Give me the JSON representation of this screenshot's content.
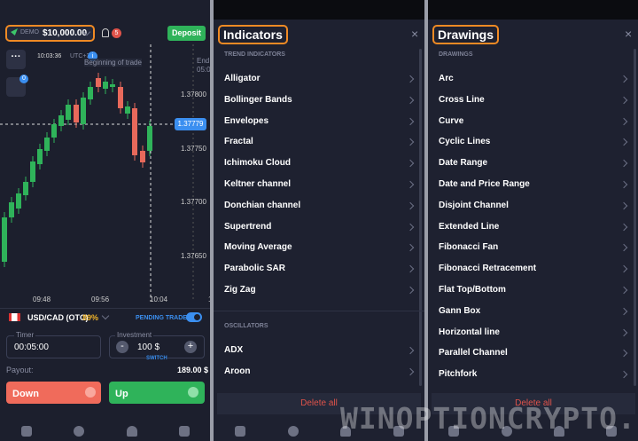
{
  "trade": {
    "account_type": "DEMO",
    "balance": "$10,000.00",
    "notifications": "5",
    "deposit": "Deposit",
    "portfolio_badge": "0",
    "clock": "10:03:36",
    "timezone": "UTC+3",
    "info": "i",
    "tooltip": "Beginning of trade",
    "end_label": "End",
    "end_time": "05:0",
    "price_labels": [
      "1.37800",
      "1.37750",
      "1.37700",
      "1.37650"
    ],
    "current_price": "1.37779",
    "time_labels": [
      "09:48",
      "09:56",
      "10:04",
      "1"
    ],
    "pair": "USD/CAD (OTC)",
    "payout_percent": "89%",
    "pending_trade": "PENDING TRADE",
    "timer_label": "Timer",
    "timer_value": "00:05:00",
    "investment_label": "Investment",
    "investment_value": "100 $",
    "switch": "SWITCH",
    "minus": "-",
    "plus": "+",
    "payout_label": "Payout:",
    "payout_value": "189.00 $",
    "down": "Down",
    "up": "Up"
  },
  "indicators": {
    "title": "Indicators",
    "sections": [
      {
        "heading": "TREND INDICATORS",
        "items": [
          "Alligator",
          "Bollinger Bands",
          "Envelopes",
          "Fractal",
          "Ichimoku Cloud",
          "Keltner channel",
          "Donchian channel",
          "Supertrend",
          "Moving Average",
          "Parabolic SAR",
          "Zig Zag"
        ]
      },
      {
        "heading": "OSCILLATORS",
        "items": [
          "ADX",
          "Aroon"
        ]
      }
    ],
    "delete_all": "Delete all"
  },
  "drawings": {
    "title": "Drawings",
    "heading": "DRAWINGS",
    "items": [
      "Arc",
      "Cross Line",
      "Curve",
      "Cyclic Lines",
      "Date Range",
      "Date and Price Range",
      "Disjoint Channel",
      "Extended Line",
      "Fibonacci Fan",
      "Fibonacci Retracement",
      "Flat Top/Bottom",
      "Gann Box",
      "Horizontal line",
      "Parallel Channel",
      "Pitchfork"
    ],
    "delete_all": "Delete all"
  },
  "watermark": "WINOPTIONCRYPTO.COM"
}
